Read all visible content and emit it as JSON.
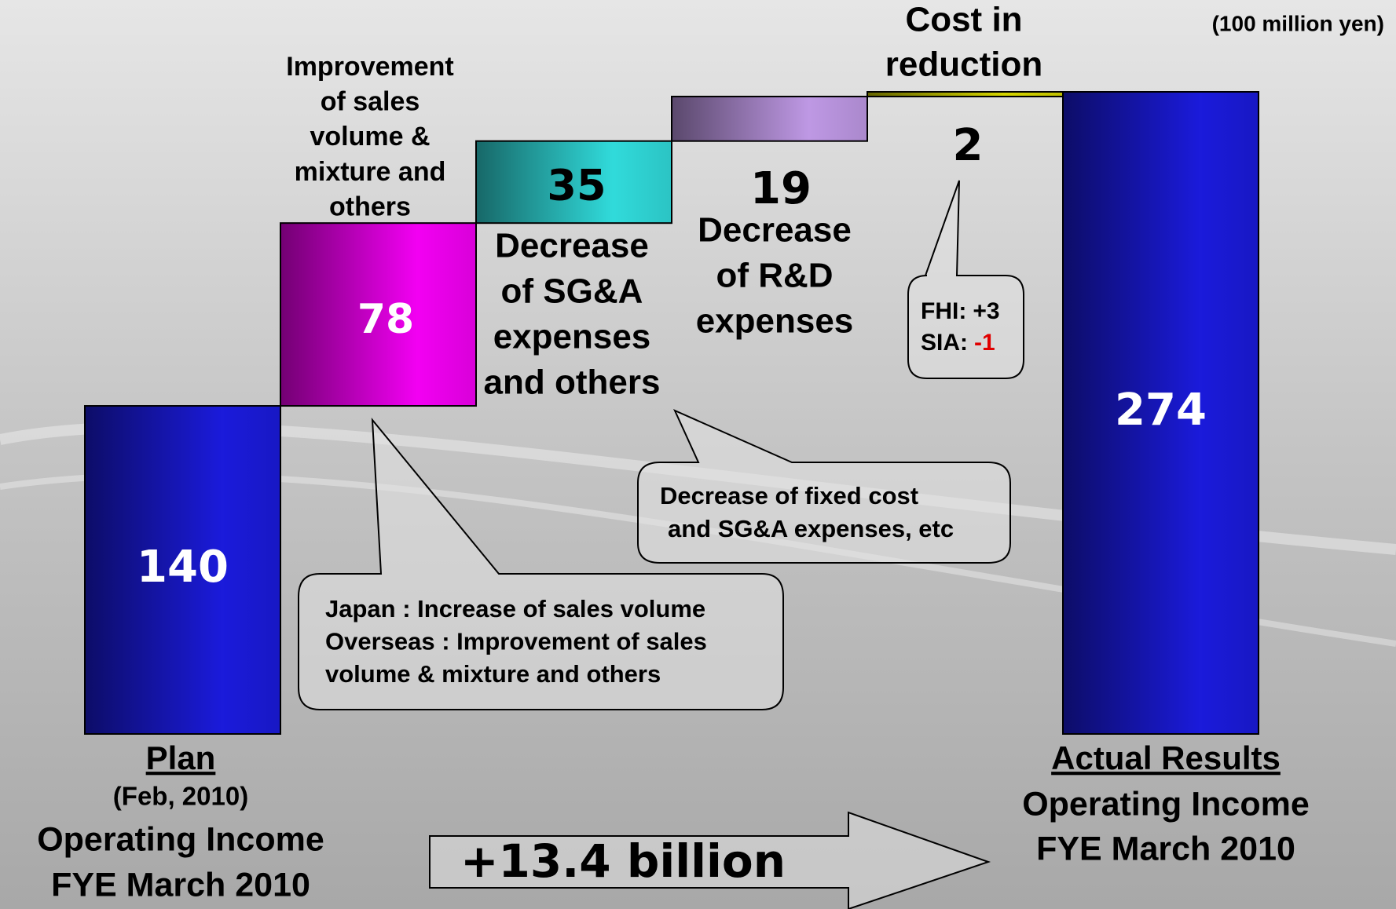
{
  "chart_data": {
    "type": "waterfall",
    "unit": "(100 million yen)",
    "categories": [
      [
        "Plan"
      ],
      [
        "Improvement",
        "of sales",
        "volume &",
        "mixture and",
        "others"
      ],
      [
        "Decrease",
        "of SG&A",
        "expenses",
        "and others"
      ],
      [
        "Decrease",
        "of R&D",
        "expenses"
      ],
      [
        "Cost in",
        "reduction"
      ],
      [
        "Actual Results"
      ]
    ],
    "measure": [
      "absolute",
      "relative",
      "relative",
      "relative",
      "relative",
      "absolute"
    ],
    "values": [
      140,
      78,
      35,
      19,
      2,
      274
    ],
    "colors": [
      "#1c1ce6",
      "#ff00ff",
      "#33e6e6",
      "#c8a0f0",
      "#e0e000",
      "#1c1ce6"
    ],
    "total_notes": {
      "plan": [
        "(Feb, 2010)",
        "Operating Income",
        "FYE March 2010"
      ],
      "actual": [
        "Operating Income",
        "FYE March 2010"
      ]
    },
    "callouts": [
      [
        "Japan : Increase of sales volume",
        "Overseas : Improvement of sales",
        "volume & mixture and others"
      ],
      [
        "Decrease of fixed cost",
        "and SG&A expenses, etc"
      ],
      [
        [
          "FHI:",
          "+3"
        ],
        [
          "SIA:",
          "-1"
        ]
      ]
    ],
    "change": "+13.4 billion"
  }
}
